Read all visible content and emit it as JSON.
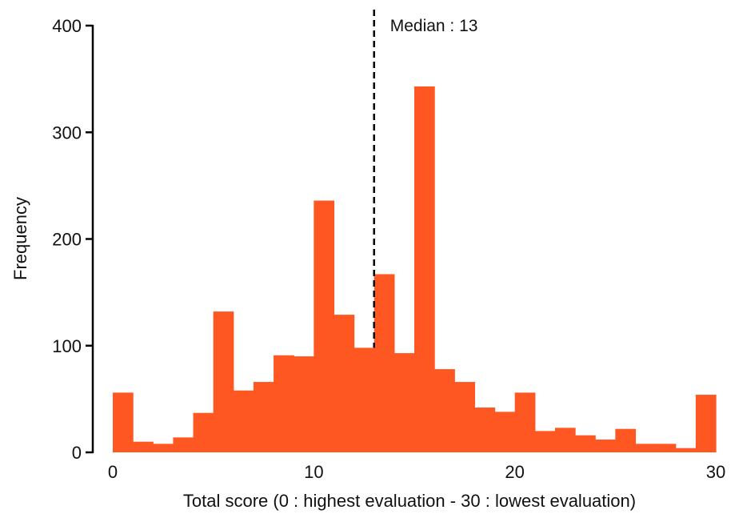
{
  "chart_data": {
    "type": "bar",
    "title": "",
    "xlabel": "Total score (0 : highest evaluation - 30 : lowest evaluation)",
    "ylabel": "Frequency",
    "xlim": [
      0,
      30
    ],
    "ylim": [
      0,
      400
    ],
    "x_ticks": [
      "0",
      "10",
      "20",
      "30"
    ],
    "y_ticks": [
      "0",
      "100",
      "200",
      "300",
      "400"
    ],
    "bin_edges": [
      0,
      1,
      2,
      3,
      4,
      5,
      6,
      7,
      8,
      9,
      10,
      11,
      12,
      13,
      14,
      15,
      16,
      17,
      18,
      19,
      20,
      21,
      22,
      23,
      24,
      25,
      26,
      27,
      28,
      29,
      30
    ],
    "values": [
      56,
      10,
      8,
      14,
      37,
      132,
      58,
      66,
      91,
      90,
      236,
      129,
      98,
      167,
      93,
      343,
      78,
      66,
      42,
      38,
      56,
      20,
      23,
      16,
      12,
      22,
      8,
      8,
      4,
      54
    ],
    "bar_color": "#FF5722",
    "grid": false,
    "median": {
      "value": 13,
      "label": "Median : 13"
    }
  }
}
